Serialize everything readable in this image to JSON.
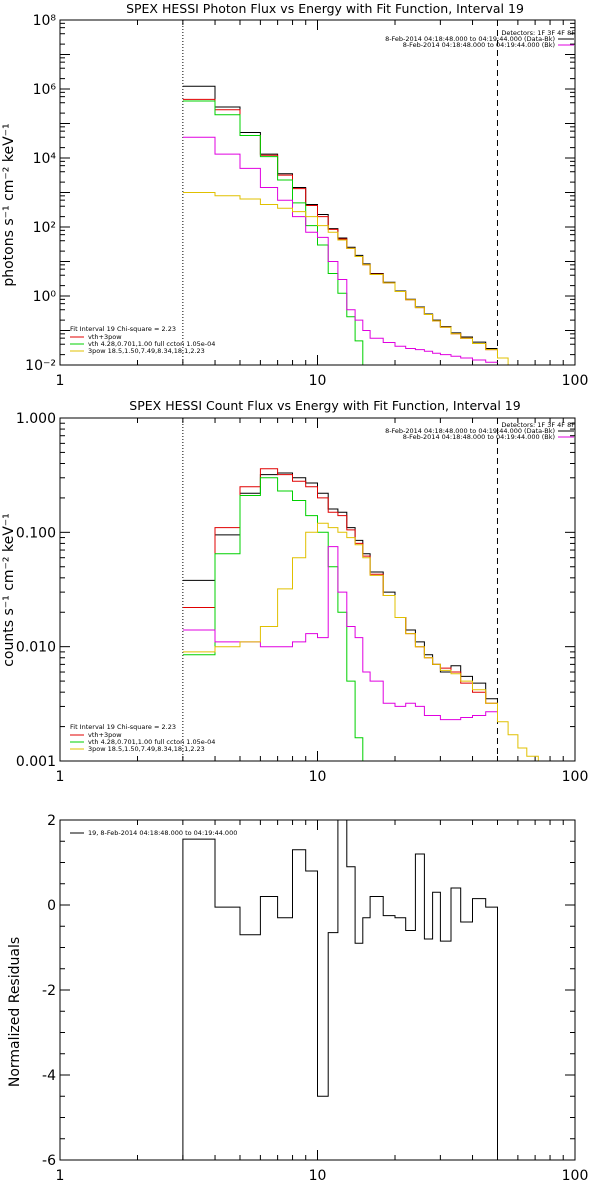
{
  "colors": {
    "total": "#000000",
    "model": "#e00000",
    "thermal": "#00d000",
    "nonthermal": "#e000e0",
    "background": "#e0c000"
  },
  "chart_data": [
    {
      "type": "line",
      "step": true,
      "title": "SPEX HESSI Photon Flux vs Energy with Fit Function, Interval 19",
      "ylabel": "photons s⁻¹ cm⁻² keV⁻¹",
      "xlabel": "",
      "xscale": "log",
      "yscale": "log",
      "xlim": [
        1,
        100
      ],
      "ylim": [
        0.01,
        100000000
      ],
      "xticks": [
        "1",
        "10",
        "100"
      ],
      "yticks": [
        "10⁻²",
        "10⁰",
        "10²",
        "10⁴",
        "10⁶",
        "10⁸"
      ],
      "info_lines": [
        "Detectors: 1F 3F 4F 8F",
        "8-Feb-2014 04:18:48.000 to 04:19:44.000 (Data-Bk)",
        "8-Feb-2014 04:18:48.000 to 04:19:44.000 (Bk)"
      ],
      "legend_lines": [
        "Fit Interval 19   Chi-square = 2.23",
        "vth+3pow",
        "vth 4.28,0.701,1.00  full ccton 1.05e-04",
        "3pow 18.5,1.50,7.49,8.34,18.1,2.23"
      ],
      "bin_edges": [
        3.0,
        4.0,
        5.0,
        6.0,
        7.0,
        8.0,
        9.0,
        10.0,
        11.0,
        12.0,
        13.0,
        14.0,
        15.0,
        16.0,
        18.0,
        20.0,
        22.0,
        24.0,
        26.0,
        28.0,
        30.0,
        33.0,
        36.0,
        40.0,
        45.0,
        50.0,
        55.0,
        60.0
      ],
      "series": [
        {
          "name": "Data-Bk",
          "color_key": "total",
          "values": [
            1200000,
            300000,
            55000,
            13000,
            3500,
            1400,
            450,
            230,
            90,
            48,
            26,
            15,
            8.5,
            4.5,
            2.5,
            1.4,
            0.8,
            0.48,
            0.3,
            0.2,
            0.13,
            0.085,
            0.065,
            0.046,
            0.03,
            null,
            null
          ]
        },
        {
          "name": "vth+3pow",
          "color_key": "model",
          "values": [
            500000,
            250000,
            45000,
            12000,
            3200,
            1300,
            420,
            200,
            85,
            45,
            24,
            14,
            8,
            4.3,
            2.4,
            1.35,
            0.78,
            0.46,
            0.29,
            0.19,
            0.125,
            0.08,
            0.06,
            0.042,
            0.028,
            null,
            null
          ]
        },
        {
          "name": "vth",
          "color_key": "thermal",
          "values": [
            450000,
            180000,
            45000,
            11000,
            2300,
            500,
            110,
            30,
            4.5,
            1.2,
            0.25,
            0.05,
            0.01,
            null,
            null,
            null,
            null,
            null,
            null,
            null,
            null,
            null,
            null,
            null,
            null,
            null,
            null
          ]
        },
        {
          "name": "Bk",
          "color_key": "nonthermal",
          "values": [
            40000,
            13000,
            5000,
            1400,
            600,
            200,
            70,
            50,
            10,
            3,
            0.4,
            0.2,
            0.1,
            0.06,
            0.045,
            0.035,
            0.03,
            0.028,
            0.025,
            0.022,
            0.02,
            0.018,
            0.016,
            0.014,
            0.012,
            null,
            null
          ]
        },
        {
          "name": "3pow",
          "color_key": "background",
          "values": [
            1000,
            800,
            650,
            450,
            350,
            280,
            200,
            110,
            70,
            42,
            24,
            14,
            8,
            4.2,
            2.4,
            1.35,
            0.78,
            0.46,
            0.29,
            0.19,
            0.125,
            0.08,
            0.06,
            0.042,
            0.028,
            0.016,
            0.01
          ]
        }
      ],
      "vlines": [
        {
          "x": 3.0,
          "style": "dotted"
        },
        {
          "x": 50.0,
          "style": "dashed"
        }
      ]
    },
    {
      "type": "line",
      "step": true,
      "title": "SPEX HESSI Count Flux vs Energy with Fit Function, Interval 19",
      "ylabel": "counts s⁻¹ cm⁻² keV⁻¹",
      "xlabel": "",
      "xscale": "log",
      "yscale": "log",
      "xlim": [
        1,
        100
      ],
      "ylim": [
        0.001,
        1.0
      ],
      "xticks": [
        "1",
        "10",
        "100"
      ],
      "yticks": [
        "0.001",
        "0.010",
        "0.100",
        "1.000"
      ],
      "info_lines": [
        "Detectors: 1F 3F 4F 8F",
        "8-Feb-2014 04:18:48.000 to 04:19:44.000 (Data-Bk)",
        "8-Feb-2014 04:18:48.000 to 04:19:44.000 (Bk)"
      ],
      "legend_lines": [
        "Fit Interval 19   Chi-square = 2.23",
        "vth+3pow",
        "vth 4.28,0.701,1.00  full ccton 1.05e-04",
        "3pow 18.5,1.50,7.49,8.34,18.1,2.23"
      ],
      "bin_edges": [
        3.0,
        4.0,
        5.0,
        6.0,
        7.0,
        8.0,
        9.0,
        10.0,
        11.0,
        12.0,
        13.0,
        14.0,
        15.0,
        16.0,
        18.0,
        20.0,
        22.0,
        24.0,
        26.0,
        28.0,
        30.0,
        33.0,
        36.0,
        40.0,
        45.0,
        50.0,
        55.0,
        60.0,
        65.0,
        72.0,
        80.0
      ],
      "series": [
        {
          "name": "Data-Bk",
          "color_key": "total",
          "values": [
            0.038,
            0.095,
            0.22,
            0.32,
            0.33,
            0.3,
            0.27,
            0.22,
            0.16,
            0.15,
            0.11,
            0.085,
            0.065,
            0.045,
            0.03,
            0.018,
            0.014,
            0.011,
            0.0085,
            0.007,
            0.006,
            0.0068,
            0.0055,
            0.0048,
            0.0035,
            null,
            null,
            null,
            null,
            null
          ]
        },
        {
          "name": "vth+3pow",
          "color_key": "model",
          "values": [
            0.022,
            0.11,
            0.25,
            0.36,
            0.32,
            0.28,
            0.25,
            0.2,
            0.15,
            0.14,
            0.105,
            0.08,
            0.062,
            0.043,
            0.028,
            0.018,
            0.013,
            0.01,
            0.008,
            0.007,
            0.0065,
            0.006,
            0.0048,
            0.004,
            0.0032,
            null,
            null,
            null,
            null,
            null
          ]
        },
        {
          "name": "vth",
          "color_key": "thermal",
          "values": [
            0.0085,
            0.065,
            0.21,
            0.3,
            0.23,
            0.19,
            0.14,
            0.1,
            0.05,
            0.02,
            0.005,
            0.0016,
            0.001,
            null,
            null,
            null,
            null,
            null,
            null,
            null,
            null,
            null,
            null,
            null,
            null,
            null,
            null,
            null,
            null,
            null
          ]
        },
        {
          "name": "Bk",
          "color_key": "nonthermal",
          "values": [
            0.014,
            0.011,
            0.011,
            0.01,
            0.01,
            0.011,
            0.013,
            0.012,
            0.075,
            0.03,
            0.015,
            0.012,
            0.006,
            0.005,
            0.0032,
            0.003,
            0.0032,
            0.003,
            0.0025,
            0.0025,
            0.0023,
            0.0023,
            0.0024,
            0.0025,
            0.0027,
            null,
            null,
            null,
            null,
            null
          ]
        },
        {
          "name": "3pow",
          "color_key": "background",
          "values": [
            0.009,
            0.01,
            0.011,
            0.015,
            0.032,
            0.06,
            0.1,
            0.12,
            0.11,
            0.1,
            0.09,
            0.078,
            0.06,
            0.042,
            0.028,
            0.018,
            0.013,
            0.01,
            0.008,
            0.007,
            0.0062,
            0.0058,
            0.005,
            0.0042,
            0.0032,
            0.0022,
            0.0017,
            0.0013,
            0.0011,
            0.00095
          ]
        }
      ],
      "vlines": [
        {
          "x": 3.0,
          "style": "dotted"
        },
        {
          "x": 50.0,
          "style": "dashed"
        }
      ]
    },
    {
      "type": "line",
      "step": true,
      "title": "",
      "ylabel": "Normalized Residuals",
      "xlabel": "",
      "xscale": "log",
      "yscale": "linear",
      "xlim": [
        1,
        100
      ],
      "ylim": [
        -6,
        2
      ],
      "xticks": [
        "1",
        "10",
        "100"
      ],
      "yticks": [
        "-6",
        "-4",
        "-2",
        "0",
        "2"
      ],
      "legend_lines": [
        "19,  8-Feb-2014 04:18:48.000 to 04:19:44.000"
      ],
      "bin_edges": [
        3.0,
        4.0,
        5.0,
        6.0,
        7.0,
        8.0,
        9.0,
        10.0,
        11.0,
        12.0,
        13.0,
        14.0,
        15.0,
        16.0,
        18.0,
        20.0,
        22.0,
        24.0,
        26.0,
        28.0,
        30.0,
        33.0,
        36.0,
        40.0,
        45.0,
        50.0
      ],
      "series": [
        {
          "name": "19",
          "color_key": "total",
          "values": [
            1.55,
            -0.05,
            -0.7,
            0.2,
            -0.3,
            1.3,
            0.8,
            -4.5,
            -0.65,
            2.0,
            0.9,
            -0.9,
            -0.3,
            0.2,
            -0.25,
            -0.3,
            -0.6,
            1.2,
            -0.8,
            0.3,
            -0.85,
            0.4,
            -0.4,
            0.15,
            -0.05
          ]
        }
      ]
    }
  ]
}
